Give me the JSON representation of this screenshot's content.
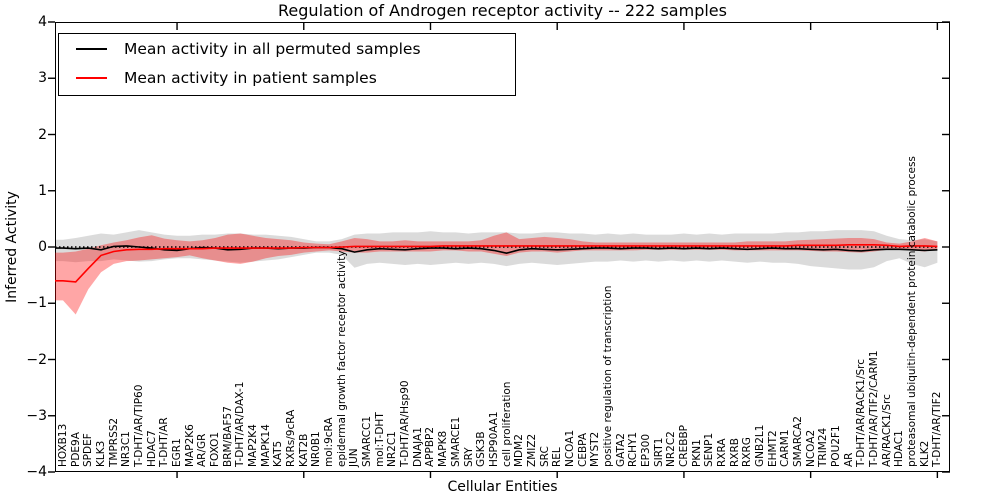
{
  "chart_data": {
    "type": "line",
    "title": "Regulation of Androgen receptor activity -- 222 samples",
    "xlabel": "Cellular Entities",
    "ylabel": "Inferred Activity",
    "ylim": [
      -4,
      4
    ],
    "grid": false,
    "legend_position": "upper left",
    "ytick_values": [
      4,
      3,
      2,
      1,
      0,
      -1,
      -2,
      -3,
      -4
    ],
    "ytick_labels": [
      "4",
      "3",
      "2",
      "1",
      "0",
      "−1",
      "−2",
      "−3",
      "−4"
    ],
    "xtick_positions": [
      10,
      20,
      30,
      40,
      50,
      60,
      70
    ],
    "categories": [
      "HOXB13",
      "PDE9A",
      "SPDEF",
      "KLK3",
      "TMPRSS2",
      "NR3C1",
      "T-DHT/AR/TIP60",
      "HDAC7",
      "T-DHT/AR",
      "EGR1",
      "MAP2K6",
      "AR/GR",
      "FOXO1",
      "BRM/BAF57",
      "T-DHT/AR/DAX-1",
      "MAP2K4",
      "MAPK14",
      "KAT5",
      "RXRs/9cRA",
      "KAT2B",
      "NR0B1",
      "mol:9cRA",
      "epidermal growth factor receptor activity",
      "JUN",
      "SMARCC1",
      "mol:T-DHT",
      "NR2C1",
      "T-DHT/AR/Hsp90",
      "DNAJA1",
      "APPBP2",
      "MAPK8",
      "SMARCE1",
      "SRY",
      "GSK3B",
      "HSP90AA1",
      "cell proliferation",
      "MDM2",
      "ZMIZ2",
      "SRC",
      "REL",
      "NCOA1",
      "CEBPA",
      "MYST2",
      "positive regulation of transcription",
      "GATA2",
      "RCHY1",
      "EP300",
      "SIRT1",
      "NR2C2",
      "CREBBP",
      "PKN1",
      "SENP1",
      "RXRA",
      "RXRB",
      "RXRG",
      "GNB2L1",
      "EHMT2",
      "CARM1",
      "SMARCA2",
      "NCOA2",
      "TRIM24",
      "POU2F1",
      "AR",
      "T-DHT/AR/RACK1/Src",
      "T-DHT/AR/TIF2/CARM1",
      "AR/RACK1/Src",
      "HDAC1",
      "proteasomal ubiquitin-dependent protein catabolic process",
      "KLK2",
      "T-DHT/AR/TIF2"
    ],
    "series": [
      {
        "key": "permuted-mean",
        "name": "Mean activity in all permuted samples",
        "color": "#000000",
        "values": [
          -0.02,
          -0.03,
          -0.02,
          -0.05,
          0.01,
          0.02,
          0.0,
          -0.02,
          -0.05,
          -0.06,
          -0.03,
          -0.01,
          -0.02,
          -0.05,
          -0.04,
          -0.02,
          -0.02,
          -0.03,
          -0.02,
          -0.02,
          -0.01,
          -0.01,
          -0.03,
          -0.09,
          -0.05,
          -0.03,
          -0.04,
          -0.05,
          -0.03,
          -0.02,
          -0.02,
          -0.03,
          -0.02,
          -0.03,
          -0.06,
          -0.11,
          -0.05,
          -0.03,
          -0.04,
          -0.05,
          -0.04,
          -0.03,
          -0.02,
          -0.02,
          -0.03,
          -0.02,
          -0.02,
          -0.03,
          -0.02,
          -0.03,
          -0.02,
          -0.03,
          -0.02,
          -0.03,
          -0.04,
          -0.03,
          -0.02,
          -0.03,
          -0.03,
          -0.04,
          -0.05,
          -0.04,
          -0.06,
          -0.07,
          -0.05,
          -0.04,
          -0.04,
          -0.05,
          -0.06,
          -0.05
        ]
      },
      {
        "key": "patient-mean",
        "name": "Mean activity in patient samples",
        "color": "#ff0000",
        "values": [
          -0.6,
          -0.62,
          -0.38,
          -0.15,
          -0.08,
          -0.05,
          -0.04,
          -0.04,
          -0.03,
          -0.03,
          -0.03,
          -0.03,
          -0.02,
          -0.02,
          -0.02,
          -0.02,
          -0.02,
          -0.02,
          -0.02,
          -0.01,
          -0.01,
          -0.01,
          0.0,
          0.01,
          0.01,
          0.01,
          0.01,
          0.01,
          0.01,
          0.01,
          0.02,
          0.02,
          0.02,
          0.02,
          0.02,
          0.02,
          0.02,
          0.02,
          0.02,
          0.02,
          0.02,
          0.02,
          0.02,
          0.02,
          0.02,
          0.02,
          0.02,
          0.02,
          0.02,
          0.02,
          0.02,
          0.02,
          0.02,
          0.02,
          0.02,
          0.02,
          0.02,
          0.02,
          0.03,
          0.03,
          0.03,
          0.03,
          0.04,
          0.04,
          0.04,
          0.03,
          0.01,
          0.02,
          0.02,
          0.01
        ]
      }
    ],
    "bands": [
      {
        "key": "permuted-range",
        "name": "Permuted samples activity range",
        "color": "#000000",
        "opacity": 0.14,
        "upper": [
          0.13,
          0.16,
          0.2,
          0.24,
          0.22,
          0.26,
          0.3,
          0.26,
          0.22,
          0.2,
          0.2,
          0.22,
          0.22,
          0.24,
          0.24,
          0.22,
          0.22,
          0.2,
          0.18,
          0.14,
          0.1,
          0.1,
          0.14,
          0.22,
          0.24,
          0.24,
          0.26,
          0.26,
          0.26,
          0.28,
          0.26,
          0.26,
          0.24,
          0.26,
          0.26,
          0.26,
          0.24,
          0.24,
          0.26,
          0.26,
          0.24,
          0.24,
          0.22,
          0.24,
          0.22,
          0.24,
          0.22,
          0.22,
          0.22,
          0.24,
          0.22,
          0.24,
          0.22,
          0.24,
          0.24,
          0.24,
          0.24,
          0.26,
          0.26,
          0.28,
          0.28,
          0.3,
          0.3,
          0.3,
          0.28,
          0.2,
          0.14,
          0.12,
          0.14,
          0.1
        ],
        "lower": [
          -0.25,
          -0.27,
          -0.25,
          -0.25,
          -0.22,
          -0.24,
          -0.26,
          -0.25,
          -0.22,
          -0.2,
          -0.2,
          -0.22,
          -0.24,
          -0.26,
          -0.28,
          -0.26,
          -0.24,
          -0.22,
          -0.18,
          -0.14,
          -0.1,
          -0.1,
          -0.14,
          -0.37,
          -0.3,
          -0.28,
          -0.3,
          -0.32,
          -0.3,
          -0.32,
          -0.3,
          -0.28,
          -0.3,
          -0.28,
          -0.3,
          -0.34,
          -0.3,
          -0.28,
          -0.3,
          -0.32,
          -0.3,
          -0.28,
          -0.26,
          -0.26,
          -0.24,
          -0.26,
          -0.24,
          -0.26,
          -0.24,
          -0.26,
          -0.24,
          -0.26,
          -0.24,
          -0.26,
          -0.28,
          -0.26,
          -0.28,
          -0.28,
          -0.3,
          -0.34,
          -0.36,
          -0.38,
          -0.4,
          -0.4,
          -0.36,
          -0.25,
          -0.2,
          -0.3,
          -0.36,
          -0.28
        ]
      },
      {
        "key": "patient-range",
        "name": "Patient samples activity range",
        "color": "#ff0000",
        "opacity": 0.35,
        "upper": [
          -0.1,
          -0.08,
          -0.03,
          0.03,
          0.08,
          0.12,
          0.17,
          0.21,
          0.15,
          0.12,
          0.1,
          0.12,
          0.16,
          0.22,
          0.24,
          0.2,
          0.16,
          0.14,
          0.12,
          0.08,
          0.06,
          0.05,
          0.1,
          0.16,
          0.14,
          0.1,
          0.1,
          0.12,
          0.1,
          0.1,
          0.1,
          0.1,
          0.1,
          0.12,
          0.2,
          0.26,
          0.14,
          0.16,
          0.18,
          0.16,
          0.14,
          0.1,
          0.08,
          0.08,
          0.08,
          0.08,
          0.08,
          0.08,
          0.08,
          0.08,
          0.08,
          0.08,
          0.08,
          0.08,
          0.1,
          0.1,
          0.1,
          0.1,
          0.12,
          0.13,
          0.14,
          0.15,
          0.16,
          0.16,
          0.14,
          0.08,
          0.06,
          0.1,
          0.16,
          0.1
        ],
        "lower": [
          -0.95,
          -1.2,
          -0.75,
          -0.45,
          -0.3,
          -0.25,
          -0.24,
          -0.22,
          -0.2,
          -0.18,
          -0.15,
          -0.2,
          -0.24,
          -0.28,
          -0.3,
          -0.26,
          -0.2,
          -0.16,
          -0.14,
          -0.1,
          -0.08,
          -0.06,
          -0.08,
          -0.1,
          -0.1,
          -0.08,
          -0.08,
          -0.08,
          -0.08,
          -0.08,
          -0.06,
          -0.06,
          -0.08,
          -0.08,
          -0.12,
          -0.16,
          -0.1,
          -0.08,
          -0.08,
          -0.1,
          -0.08,
          -0.06,
          -0.06,
          -0.06,
          -0.06,
          -0.06,
          -0.05,
          -0.05,
          -0.05,
          -0.05,
          -0.05,
          -0.05,
          -0.05,
          -0.06,
          -0.06,
          -0.06,
          -0.06,
          -0.06,
          -0.06,
          -0.07,
          -0.08,
          -0.08,
          -0.09,
          -0.1,
          -0.08,
          -0.05,
          -0.04,
          -0.06,
          -0.08,
          -0.04
        ]
      }
    ],
    "zero_line": {
      "value": 0,
      "style": "dotted",
      "color": "#000000"
    }
  }
}
